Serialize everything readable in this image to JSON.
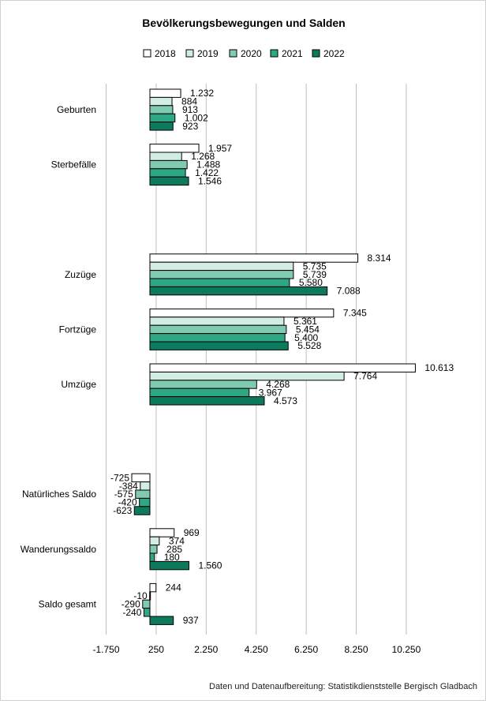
{
  "chart_data": {
    "type": "bar",
    "orientation": "horizontal",
    "title": "Bevölkerungsbewegungen und Salden",
    "categories": [
      "Geburten",
      "Sterbefälle",
      "",
      "Zuzüge",
      "Fortzüge",
      "Umzüge",
      "",
      "Natürliches Saldo",
      "Wanderungssaldo",
      "Saldo gesamt"
    ],
    "series": [
      {
        "name": "2018",
        "color": "#ffffff",
        "values": [
          1232,
          1957,
          null,
          8314,
          7345,
          10613,
          null,
          -725,
          969,
          244
        ],
        "labels": [
          "1.232",
          "1.957",
          "",
          "8.314",
          "7.345",
          "10.613",
          "",
          "-725",
          "969",
          "244"
        ]
      },
      {
        "name": "2019",
        "color": "#d2ede4",
        "values": [
          884,
          1268,
          null,
          5735,
          5361,
          7764,
          null,
          -384,
          374,
          -10
        ],
        "labels": [
          "884",
          "1.268",
          "",
          "5.735",
          "5.361",
          "7.764",
          "",
          "-384",
          "374",
          "-10"
        ]
      },
      {
        "name": "2020",
        "color": "#7fcab0",
        "values": [
          913,
          1488,
          null,
          5739,
          5454,
          4268,
          null,
          -575,
          285,
          -290
        ],
        "labels": [
          "913",
          "1.488",
          "",
          "5.739",
          "5.454",
          "4.268",
          "",
          "-575",
          "285",
          "-290"
        ]
      },
      {
        "name": "2021",
        "color": "#2ea784",
        "values": [
          1002,
          1422,
          null,
          5580,
          5400,
          3967,
          null,
          -420,
          180,
          -240
        ],
        "labels": [
          "1.002",
          "1.422",
          "",
          "5.580",
          "5.400",
          "3.967",
          "",
          "-420",
          "180",
          "-240"
        ]
      },
      {
        "name": "2022",
        "color": "#0e7a5d",
        "values": [
          923,
          1546,
          null,
          7088,
          5528,
          4573,
          null,
          -623,
          1560,
          937
        ],
        "labels": [
          "923",
          "1.546",
          "",
          "7.088",
          "5.528",
          "4.573",
          "",
          "-623",
          "1.560",
          "937"
        ]
      }
    ],
    "xticks": [
      -1750,
      250,
      2250,
      4250,
      6250,
      8250,
      10250
    ],
    "xtick_labels": [
      "-1.750",
      "250",
      "2.250",
      "4.250",
      "6.250",
      "8.250",
      "10.250"
    ],
    "xlim": [
      -1750,
      11500
    ],
    "grid": true,
    "legend_position": "top"
  },
  "source": "Daten und Datenaufbereitung: Statistikdienststelle Bergisch Gladbach"
}
